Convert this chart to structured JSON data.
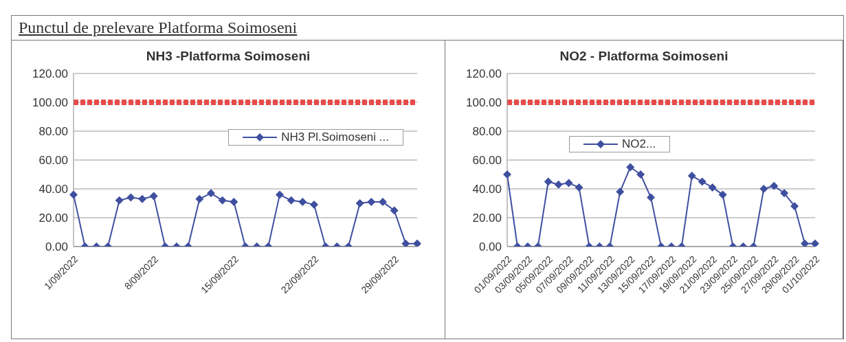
{
  "chart_data": [
    {
      "type": "other",
      "title": "Punctul de prelevare Platforma Soimoseni"
    },
    {
      "type": "line",
      "title": "NH3 -Platforma Soimoseni",
      "categories": [
        "1/09/2022",
        null,
        null,
        null,
        null,
        null,
        null,
        "8/09/2022",
        null,
        null,
        null,
        null,
        null,
        null,
        "15/09/2022",
        null,
        null,
        null,
        null,
        null,
        null,
        "22/09/2022",
        null,
        null,
        null,
        null,
        null,
        null,
        "29/09/2022",
        null,
        null
      ],
      "series": [
        {
          "name": "NH3 Pl.Soimoseni ...",
          "color": "#3f4fa0",
          "values": [
            36,
            0,
            0,
            0,
            32,
            34,
            33,
            35,
            0,
            0,
            0,
            33,
            37,
            32,
            31,
            0,
            0,
            0,
            36,
            32,
            31,
            29,
            0,
            0,
            0,
            30,
            31,
            31,
            25,
            2,
            2
          ]
        }
      ],
      "ylim": [
        0,
        120
      ],
      "yticks": [
        {
          "value": 0,
          "label": "0.00"
        },
        {
          "value": 20,
          "label": "20.00"
        },
        {
          "value": 40,
          "label": "40.00"
        },
        {
          "value": 60,
          "label": "60.00"
        },
        {
          "value": 80,
          "label": "80.00"
        },
        {
          "value": 100,
          "label": "100.00"
        },
        {
          "value": 120,
          "label": "120.00"
        }
      ],
      "ref_lines": [
        {
          "axis": "y",
          "value": 100,
          "color": "#e84a4a",
          "line_style": "dashed"
        }
      ],
      "grid": "y",
      "legend": "right",
      "marker": "diamond"
    },
    {
      "type": "line",
      "title": "NO2 - Platforma Soimoseni",
      "categories": [
        "01/09/2022",
        null,
        "03/09/2022",
        null,
        "05/09/2022",
        null,
        "07/09/2022",
        null,
        "09/09/2022",
        null,
        "11/09/2022",
        null,
        "13/09/2022",
        null,
        "15/09/2022",
        null,
        "17/09/2022",
        null,
        "19/09/2022",
        null,
        "21/09/2022",
        null,
        "23/09/2022",
        null,
        "25/09/2022",
        null,
        "27/09/2022",
        null,
        "29/09/2022",
        null,
        "01/10/2022"
      ],
      "series": [
        {
          "name": "NO2...",
          "color": "#3f4fa0",
          "values": [
            50,
            0,
            0,
            0,
            45,
            43,
            44,
            41,
            0,
            0,
            0,
            38,
            55,
            50,
            34,
            0,
            0,
            0,
            49,
            45,
            41,
            36,
            0,
            0,
            0,
            40,
            42,
            37,
            28,
            2,
            2
          ]
        }
      ],
      "ylim": [
        0,
        120
      ],
      "yticks": [
        {
          "value": 0,
          "label": "0.00"
        },
        {
          "value": 20,
          "label": "20.00"
        },
        {
          "value": 40,
          "label": "40.00"
        },
        {
          "value": 60,
          "label": "60.00"
        },
        {
          "value": 80,
          "label": "80.00"
        },
        {
          "value": 100,
          "label": "100.00"
        },
        {
          "value": 120,
          "label": "120.00"
        }
      ],
      "ref_lines": [
        {
          "axis": "y",
          "value": 100,
          "color": "#e84a4a",
          "line_style": "dashed"
        }
      ],
      "grid": "y",
      "legend": "top",
      "marker": "diamond"
    }
  ]
}
